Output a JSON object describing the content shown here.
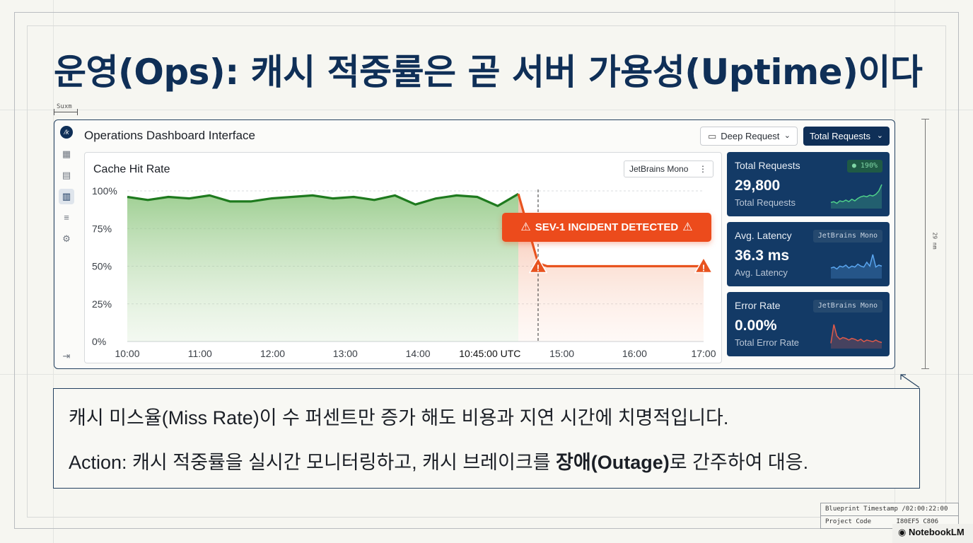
{
  "slide": {
    "title": "운영(Ops): 캐시 적중률은 곧 서버 가용성(Uptime)이다",
    "dimension_label": "Suxm",
    "vertical_dimension_label": "29 nm"
  },
  "dashboard": {
    "title": "Operations Dashboard Interface",
    "dropdown_deep": "Deep Request",
    "dropdown_total": "Total Requests",
    "nav_icons": [
      "logo-icon",
      "grid-icon",
      "document-icon",
      "bar-chart-icon",
      "list-icon",
      "gear-icon",
      "exit-icon"
    ]
  },
  "chart_panel": {
    "title": "Cache Hit Rate",
    "font_badge": "JetBrains Mono",
    "incident_label": "SEV-1 INCIDENT DETECTED"
  },
  "chart_data": {
    "type": "line",
    "title": "Cache Hit Rate",
    "x_ticks": [
      "10:00",
      "11:00",
      "12:00",
      "13:00",
      "14:00",
      "10:45:00 UTC",
      "15:00",
      "16:00",
      "17:00"
    ],
    "y_ticks": [
      "100%",
      "75%",
      "50%",
      "25%",
      "0%"
    ],
    "ylim": [
      0,
      100
    ],
    "xlim": [
      0,
      7
    ],
    "grid": true,
    "incident_marker_x": 4.99,
    "series": [
      {
        "status": "normal",
        "color": "#1e7a1e",
        "points": [
          [
            0,
            96
          ],
          [
            0.25,
            94
          ],
          [
            0.5,
            96
          ],
          [
            0.75,
            95
          ],
          [
            1,
            97
          ],
          [
            1.25,
            93
          ],
          [
            1.5,
            93
          ],
          [
            1.75,
            95
          ],
          [
            2,
            96
          ],
          [
            2.25,
            97
          ],
          [
            2.5,
            95
          ],
          [
            2.75,
            96
          ],
          [
            3,
            94
          ],
          [
            3.25,
            97
          ],
          [
            3.5,
            91
          ],
          [
            3.75,
            95
          ],
          [
            4,
            97
          ],
          [
            4.25,
            96
          ],
          [
            4.5,
            90
          ],
          [
            4.75,
            98
          ]
        ]
      },
      {
        "status": "incident",
        "color": "#e8531f",
        "points": [
          [
            4.75,
            98
          ],
          [
            4.99,
            52
          ],
          [
            5.1,
            50
          ],
          [
            7,
            50
          ]
        ]
      }
    ],
    "markers": [
      [
        4.99,
        50
      ],
      [
        7,
        50
      ]
    ]
  },
  "kpis": [
    {
      "label": "Total Requests",
      "value": "29,800",
      "sub": "Total Requests",
      "badge": "190%",
      "badge_style": "green",
      "spark_color": "#4fd08a",
      "spark": [
        4,
        5,
        3,
        6,
        5,
        7,
        5,
        8,
        6,
        9,
        11,
        12,
        11,
        13,
        12,
        14,
        18,
        26
      ]
    },
    {
      "label": "Avg. Latency",
      "value": "36.3 ms",
      "sub": "Avg. Latency",
      "badge": "JetBrains Mono",
      "badge_style": "dark",
      "spark_color": "#5aa6f0",
      "spark": [
        8,
        9,
        7,
        10,
        9,
        11,
        8,
        10,
        9,
        12,
        10,
        9,
        14,
        10,
        22,
        9,
        11,
        10
      ]
    },
    {
      "label": "Error Rate",
      "value": "0.00%",
      "sub": "Total Error Rate",
      "badge": "JetBrains Mono",
      "badge_style": "dark",
      "spark_color": "#e05a4a",
      "spark": [
        3,
        26,
        12,
        8,
        10,
        9,
        7,
        9,
        8,
        6,
        8,
        5,
        7,
        6,
        5,
        7,
        5,
        4
      ]
    }
  ],
  "notes": {
    "line1": "캐시 미스율(Miss Rate)이 수 퍼센트만 증가 해도 비용과 지연 시간에 치명적입니다.",
    "line2_prefix": "Action: 캐시 적중률을 실시간 모니터링하고, 캐시 브레이크를 ",
    "line2_emphasis": "장애(Outage)",
    "line2_suffix": "로 간주하여 대응."
  },
  "stamp": {
    "timestamp_label": "Blueprint Timestamp",
    "timestamp_value": "/02:00:22:00",
    "project_label": "Project Code",
    "project_value": "I80EF5 C806"
  },
  "watermark": "NotebookLM"
}
